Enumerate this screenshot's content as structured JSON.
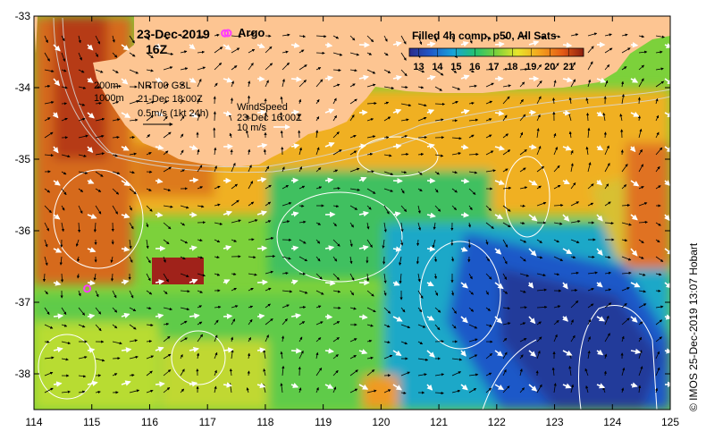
{
  "header": {
    "date": "23-Dec-2019",
    "time": "16Z",
    "argo_label": "Argo",
    "product": "Filled 4h comp, p50, All Sats"
  },
  "colorbar": {
    "ticks": [
      "13",
      "14",
      "15",
      "16",
      "17",
      "18",
      "19",
      "20",
      "21"
    ],
    "range": [
      12.5,
      21.8
    ],
    "colors": [
      "#2b2c8a",
      "#1f57c8",
      "#19a3d9",
      "#25c26e",
      "#7cd13b",
      "#e8e62c",
      "#f4a21d",
      "#e55a14",
      "#8c1f10"
    ]
  },
  "legend": {
    "contour_200": "200m",
    "contour_1000": "1000m",
    "current_product": "NRT00 GSL",
    "current_time": "21-Dec 18:00Z",
    "current_scale": "0.5m/s (1kt 24h)",
    "wind_title": "WindSpeed",
    "wind_time": "23-Dec 16:00Z",
    "wind_scale": "10 m/s"
  },
  "axes": {
    "x_ticks": [
      "114",
      "115",
      "116",
      "117",
      "118",
      "119",
      "120",
      "121",
      "122",
      "123",
      "124",
      "125"
    ],
    "y_ticks": [
      "-33",
      "-34",
      "-35",
      "-36",
      "-37",
      "-38"
    ],
    "xlim": [
      114,
      125
    ],
    "ylim": [
      -38.5,
      -33
    ]
  },
  "argo_floats": [
    {
      "lon": 117.3,
      "lat": -33.24
    },
    {
      "lon": 114.92,
      "lat": -36.81
    }
  ],
  "colors": {
    "land": "#fdc592",
    "argo": "#ff3cff"
  },
  "credit": "© IMOS 25-Dec-2019 13:07 Hobart"
}
